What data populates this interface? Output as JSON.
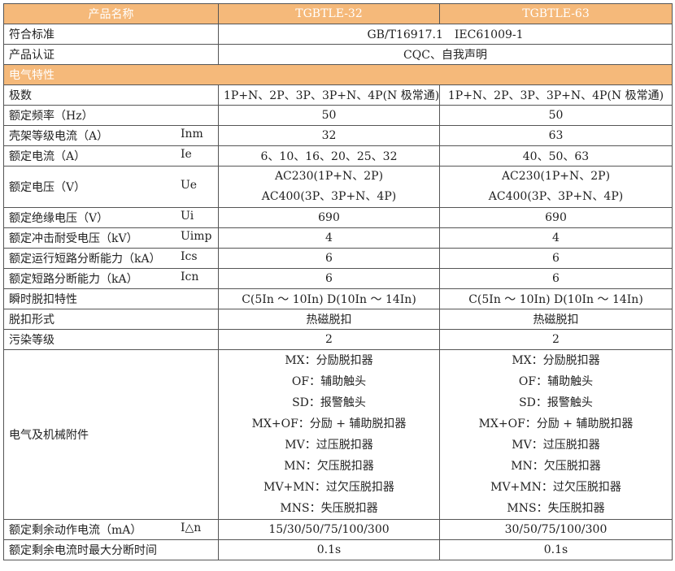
{
  "header": {
    "name": "产品名称",
    "models": [
      "TGBTLE-32",
      "TGBTLE-63"
    ]
  },
  "common": [
    {
      "label": "符合标准",
      "value": "GB/T16917.1　IEC61009-1"
    },
    {
      "label": "产品认证",
      "value": "CQC、自我声明"
    }
  ],
  "section": "电气特性",
  "rows": [
    {
      "label": "极数",
      "sym": "",
      "v": [
        "1P+N、2P、3P、3P+N、4P(N 极常通)",
        "1P+N、2P、3P、3P+N、4P(N 极常通)"
      ]
    },
    {
      "label": "额定频率（Hz）",
      "sym": "",
      "v": [
        "50",
        "50"
      ]
    },
    {
      "label": "壳架等级电流（A）",
      "sym": "Inm",
      "v": [
        "32",
        "63"
      ]
    },
    {
      "label": "额定电流（A）",
      "sym": "Ie",
      "v": [
        "6、10、16、20、25、32",
        "40、50、63"
      ]
    },
    {
      "label": "额定电压（V）",
      "sym": "Ue",
      "v": [
        [
          "AC230(1P+N、2P)",
          "AC400(3P、3P+N、4P)"
        ],
        [
          "AC230(1P+N、2P)",
          "AC400(3P、3P+N、4P)"
        ]
      ]
    },
    {
      "label": "额定绝缘电压（V）",
      "sym": "Ui",
      "v": [
        "690",
        "690"
      ]
    },
    {
      "label": "额定冲击耐受电压（kV）",
      "sym": "Uimp",
      "v": [
        "4",
        "4"
      ]
    },
    {
      "label": "额定运行短路分断能力（kA）",
      "sym": "Ics",
      "v": [
        "6",
        "6"
      ]
    },
    {
      "label": "额定短路分断能力（kA）",
      "sym": "Icn",
      "v": [
        "6",
        "6"
      ]
    },
    {
      "label": "瞬时脱扣特性",
      "sym": "",
      "v": [
        "C(5In ～ 10In) D(10In ～ 14In)",
        "C(5In ～ 10In) D(10In ～ 14In)"
      ]
    },
    {
      "label": "脱扣形式",
      "sym": "",
      "v": [
        "热磁脱扣",
        "热磁脱扣"
      ]
    },
    {
      "label": "污染等级",
      "sym": "",
      "v": [
        "2",
        "2"
      ]
    }
  ],
  "accessories": {
    "label": "电气及机械附件",
    "items": [
      "MX：分励脱扣器",
      "OF：辅助触头",
      "SD：报警触头",
      "MX+OF：分励 + 辅助脱扣器",
      "MV：过压脱扣器",
      "MN：欠压脱扣器",
      "MV+MN：过欠压脱扣器",
      "MNS：失压脱扣器"
    ]
  },
  "tail": [
    {
      "label": "额定剩余动作电流（mA）",
      "sym": "I△n",
      "v": [
        "15/30/50/75/100/300",
        "30/50/75/100/300"
      ]
    },
    {
      "label": "额定剩余电流时最大分断时间",
      "sym": "",
      "v": [
        "0.1s",
        "0.1s"
      ]
    }
  ]
}
